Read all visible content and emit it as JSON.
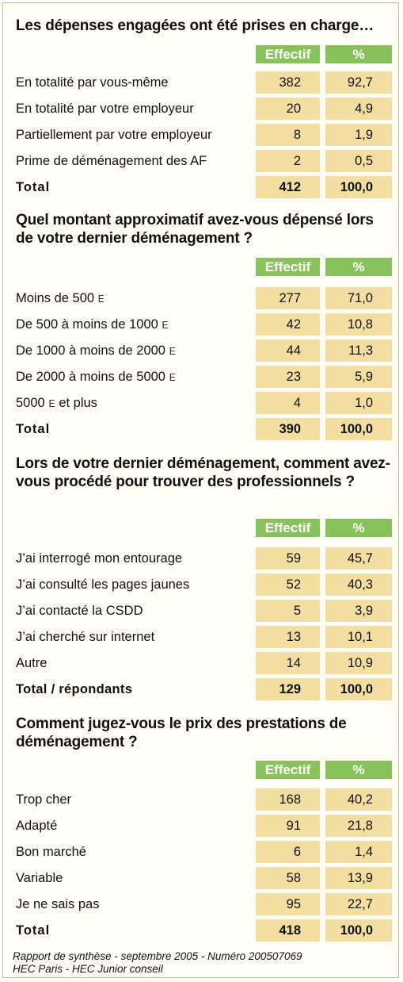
{
  "sections": [
    {
      "question": "Les dépenses engagées ont été prises en charge…",
      "headers": [
        "Effectif",
        "%"
      ],
      "rows": [
        {
          "label": "En totalité par vous-même",
          "n": "382",
          "pct": "92,7"
        },
        {
          "label": "En totalité par votre employeur",
          "n": "20",
          "pct": "4,9"
        },
        {
          "label": "Partiellement par votre employeur",
          "n": "8",
          "pct": "1,9"
        },
        {
          "label": "Prime de déménagement des AF",
          "n": "2",
          "pct": "0,5"
        }
      ],
      "total": {
        "label": "Total",
        "n": "412",
        "pct": "100,0"
      }
    },
    {
      "question": "Quel montant approximatif avez-vous dépensé lors de votre dernier déménagement ?",
      "headers": [
        "Effectif",
        "%"
      ],
      "rows": [
        {
          "label": "Moins de 500",
          "suffix": "E",
          "n": "277",
          "pct": "71,0"
        },
        {
          "label": "De 500 à moins de 1000",
          "suffix": "E",
          "n": "42",
          "pct": "10,8"
        },
        {
          "label": "De 1000 à moins de 2000",
          "suffix": "E",
          "n": "44",
          "pct": "11,3"
        },
        {
          "label": "De 2000 à moins de 5000",
          "suffix": "E",
          "n": "23",
          "pct": "5,9"
        },
        {
          "label": "5000",
          "mid": "E",
          "after": "et plus",
          "n": "4",
          "pct": "1,0"
        }
      ],
      "total": {
        "label": "Total",
        "n": "390",
        "pct": "100,0"
      }
    },
    {
      "question": "Lors de votre dernier déménagement, comment avez- vous procédé pour trouver des professionnels ?",
      "headers": [
        "Effectif",
        "%"
      ],
      "rows": [
        {
          "label": "J’ai interrogé mon entourage",
          "n": "59",
          "pct": "45,7"
        },
        {
          "label": "J’ai consulté les pages jaunes",
          "n": "52",
          "pct": "40,3"
        },
        {
          "label": "J’ai contacté la CSDD",
          "n": "5",
          "pct": "3,9"
        },
        {
          "label": "J’ai cherché sur internet",
          "n": "13",
          "pct": "10,1"
        },
        {
          "label": "Autre",
          "n": "14",
          "pct": "10,9"
        }
      ],
      "total": {
        "label": "Total / répondants",
        "n": "129",
        "pct": "100,0"
      }
    },
    {
      "question": "Comment jugez-vous le prix des prestations de déménagement ?",
      "headers": [
        "Effectif",
        "%"
      ],
      "rows": [
        {
          "label": "Trop cher",
          "n": "168",
          "pct": "40,2"
        },
        {
          "label": "Adapté",
          "n": "91",
          "pct": "21,8"
        },
        {
          "label": "Bon marché",
          "n": "6",
          "pct": "1,4"
        },
        {
          "label": "Variable",
          "n": "58",
          "pct": "13,9"
        },
        {
          "label": "Je ne sais pas",
          "n": "95",
          "pct": "22,7"
        }
      ],
      "total": {
        "label": "Total",
        "n": "418",
        "pct": "100,0"
      }
    }
  ],
  "footer": {
    "line1": "Rapport de synthèse - septembre 2005 - Numéro 200507069",
    "line2": "HEC Paris - HEC Junior conseil"
  },
  "colors": {
    "header_green": "#88c25a",
    "cell_yellow": "#f2dea0",
    "border": "#c9b98a"
  }
}
